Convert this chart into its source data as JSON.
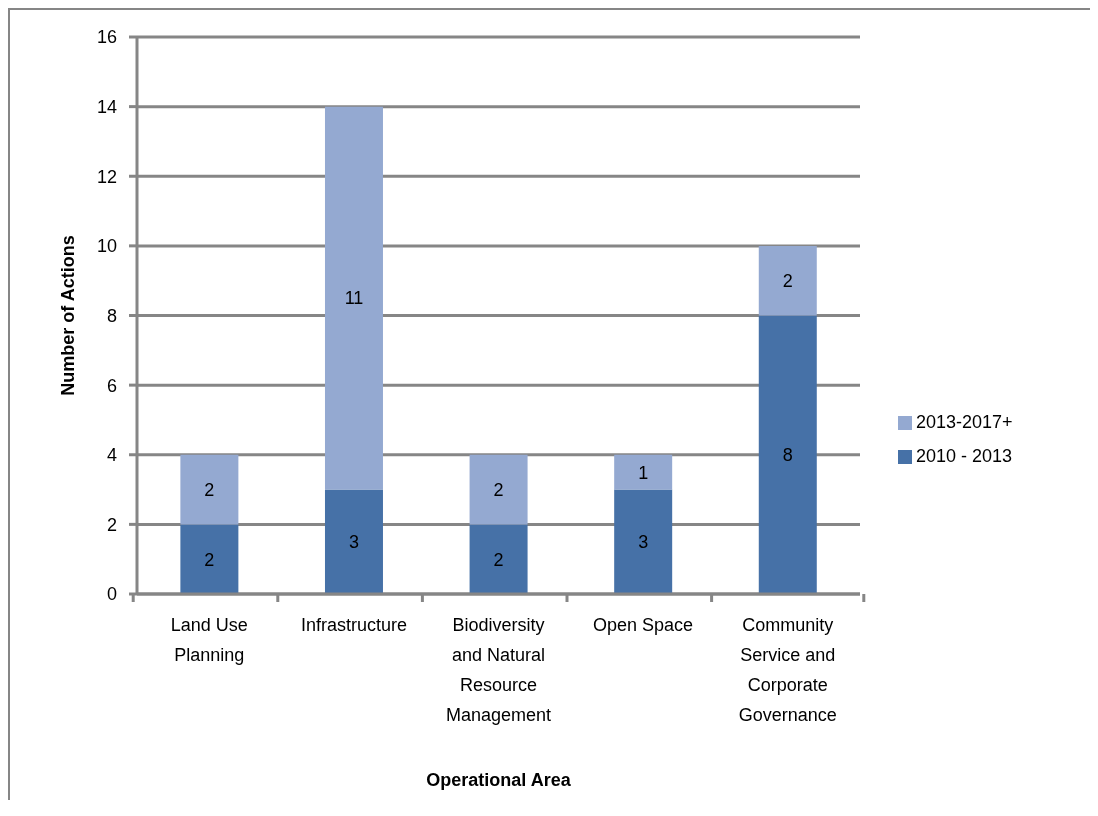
{
  "chart_data": {
    "type": "bar",
    "stacked": true,
    "xlabel": "Operational Area",
    "ylabel": "Number of Actions",
    "categories": [
      "Land Use Planning",
      "Infrastructure",
      "Biodiversity and Natural Resource Management",
      "Open Space",
      "Community Service and Corporate Governance"
    ],
    "series": [
      {
        "name": "2010 - 2013",
        "color": "#4671a7",
        "values": [
          2,
          3,
          2,
          3,
          8
        ]
      },
      {
        "name": "2013-2017+",
        "color": "#94a9d1",
        "values": [
          2,
          11,
          2,
          1,
          2
        ]
      }
    ],
    "ylim": [
      0,
      16
    ],
    "yticks": [
      0,
      2,
      4,
      6,
      8,
      10,
      12,
      14,
      16
    ],
    "grid": "y",
    "legend": "right",
    "data_labels": true
  }
}
